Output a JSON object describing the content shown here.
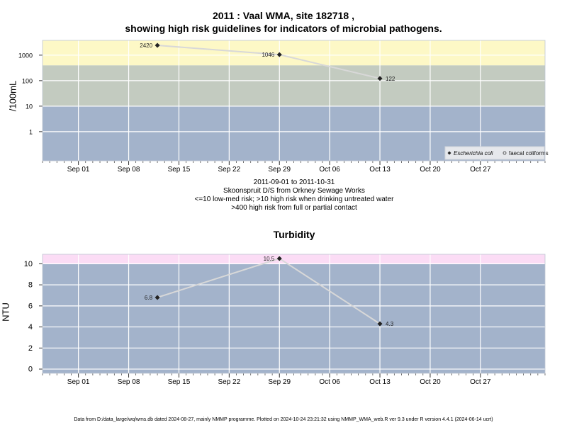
{
  "figure": {
    "title_line1": "2011 : Vaal WMA, site 182718 ,",
    "title_line2": "showing high risk guidelines for indicators of microbial pathogens.",
    "date_range": "2011-09-01 to 2011-10-31",
    "site_name": "Skoonspruit D/S from Orkney Sewage Works",
    "guideline_line1": "<=10 low-med risk; >10 high risk when drinking untreated water",
    "guideline_line2": ">400 high risk from full or partial contact",
    "footer": "Data from D:/data_large/wq/wms.db dated 2024-08-27, mainly NMMP programme. Plotted on 2024-10-24 23:21:32 using NMMP_WMA_web.R ver 9.3 under R version 4.4.1 (2024-06-14 ucrt)"
  },
  "chart_data": [
    {
      "type": "line",
      "title": "",
      "xlabel": "",
      "ylabel": "/100mL",
      "y_scale": "log",
      "x_ticks": [
        "Sep 01",
        "Sep 08",
        "Sep 15",
        "Sep 22",
        "Sep 29",
        "Oct 06",
        "Oct 13",
        "Oct 20",
        "Oct 27"
      ],
      "x_tick_dates": [
        "2011-09-01",
        "2011-09-08",
        "2011-09-15",
        "2011-09-22",
        "2011-09-29",
        "2011-10-06",
        "2011-10-13",
        "2011-10-20",
        "2011-10-27"
      ],
      "xlim": [
        "2011-08-27",
        "2011-11-05"
      ],
      "y_ticks": [
        "1",
        "10",
        "100",
        "1000"
      ],
      "y_tick_values": [
        1,
        10,
        100,
        1000
      ],
      "ylim": [
        0.072,
        3800
      ],
      "grid": true,
      "legend_position": "bottom-right",
      "bands": [
        {
          "from": 0.072,
          "to": 10,
          "color": "#a3b3cb"
        },
        {
          "from": 10,
          "to": 400,
          "color": "#c3cbc0"
        },
        {
          "from": 400,
          "to": 3800,
          "color": "#fdf8c6"
        }
      ],
      "series": [
        {
          "name": "Escherichia coli",
          "marker": "filled-diamond",
          "line_color": "#d8d8d8",
          "x": [
            "2011-09-12",
            "2011-09-29",
            "2011-10-13"
          ],
          "values": [
            2420,
            1046,
            122
          ],
          "labels": [
            "2420",
            "1046",
            "122"
          ],
          "label_side": [
            "left",
            "left",
            "right"
          ]
        },
        {
          "name": "faecal coliforms",
          "marker": "open-circle",
          "x": [],
          "values": [],
          "labels": []
        }
      ]
    },
    {
      "type": "line",
      "title": "Turbidity",
      "xlabel": "",
      "ylabel": "NTU",
      "y_scale": "linear",
      "x_ticks": [
        "Sep 01",
        "Sep 08",
        "Sep 15",
        "Sep 22",
        "Sep 29",
        "Oct 06",
        "Oct 13",
        "Oct 20",
        "Oct 27"
      ],
      "x_tick_dates": [
        "2011-09-01",
        "2011-09-08",
        "2011-09-15",
        "2011-09-22",
        "2011-09-29",
        "2011-10-06",
        "2011-10-13",
        "2011-10-20",
        "2011-10-27"
      ],
      "xlim": [
        "2011-08-27",
        "2011-11-05"
      ],
      "y_ticks": [
        "0",
        "2",
        "4",
        "6",
        "8",
        "10"
      ],
      "y_tick_values": [
        0,
        2,
        4,
        6,
        8,
        10
      ],
      "ylim": [
        -0.4,
        10.9
      ],
      "grid": true,
      "bands": [
        {
          "from": -0.4,
          "to": 10,
          "color": "#a3b3cb"
        },
        {
          "from": 10,
          "to": 10.9,
          "color": "#fbdcf5"
        }
      ],
      "series": [
        {
          "name": "",
          "marker": "filled-diamond",
          "line_color": "#d8d8d8",
          "x": [
            "2011-09-12",
            "2011-09-29",
            "2011-10-13"
          ],
          "values": [
            6.8,
            10.5,
            4.3
          ],
          "labels": [
            "6.8",
            "10.5",
            "4.3"
          ],
          "label_side": [
            "left",
            "left",
            "right"
          ]
        }
      ]
    }
  ]
}
